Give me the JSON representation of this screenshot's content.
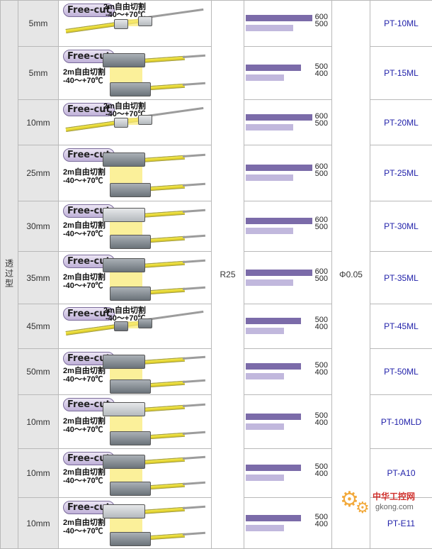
{
  "type_label": "透过型",
  "radius": "R25",
  "core_diameter": "Φ0.05",
  "picture_text": {
    "freecut": "Free-cut",
    "cut_length": "2m自由切割",
    "temperature": "-40～+70℃"
  },
  "rows": [
    {
      "distance": "5mm",
      "v1": 600,
      "v2": 500,
      "model": "PT-10ML"
    },
    {
      "distance": "5mm",
      "v1": 500,
      "v2": 400,
      "model": "PT-15ML"
    },
    {
      "distance": "10mm",
      "v1": 600,
      "v2": 500,
      "model": "PT-20ML"
    },
    {
      "distance": "25mm",
      "v1": 600,
      "v2": 500,
      "model": "PT-25ML"
    },
    {
      "distance": "30mm",
      "v1": 600,
      "v2": 500,
      "model": "PT-30ML"
    },
    {
      "distance": "35mm",
      "v1": 600,
      "v2": 500,
      "model": "PT-35ML"
    },
    {
      "distance": "45mm",
      "v1": 500,
      "v2": 400,
      "model": "PT-45ML"
    },
    {
      "distance": "50mm",
      "v1": 500,
      "v2": 400,
      "model": "PT-50ML"
    },
    {
      "distance": "10mm",
      "v1": 500,
      "v2": 400,
      "model": "PT-10MLD"
    },
    {
      "distance": "10mm",
      "v1": 500,
      "v2": 400,
      "model": "PT-A10"
    },
    {
      "distance": "10mm",
      "v1": 500,
      "v2": 400,
      "model": "PT-E11"
    }
  ],
  "watermark": {
    "site_name": "中华工控网",
    "domain": "gkong.com",
    "colors": {
      "gear": "#f2a93b",
      "text": "#d0302c"
    }
  },
  "colors": {
    "bar_primary": "#7b6ba9",
    "bar_secondary": "#c1b8dd",
    "model_text": "#2222aa",
    "shade": "#e6e6e6"
  }
}
